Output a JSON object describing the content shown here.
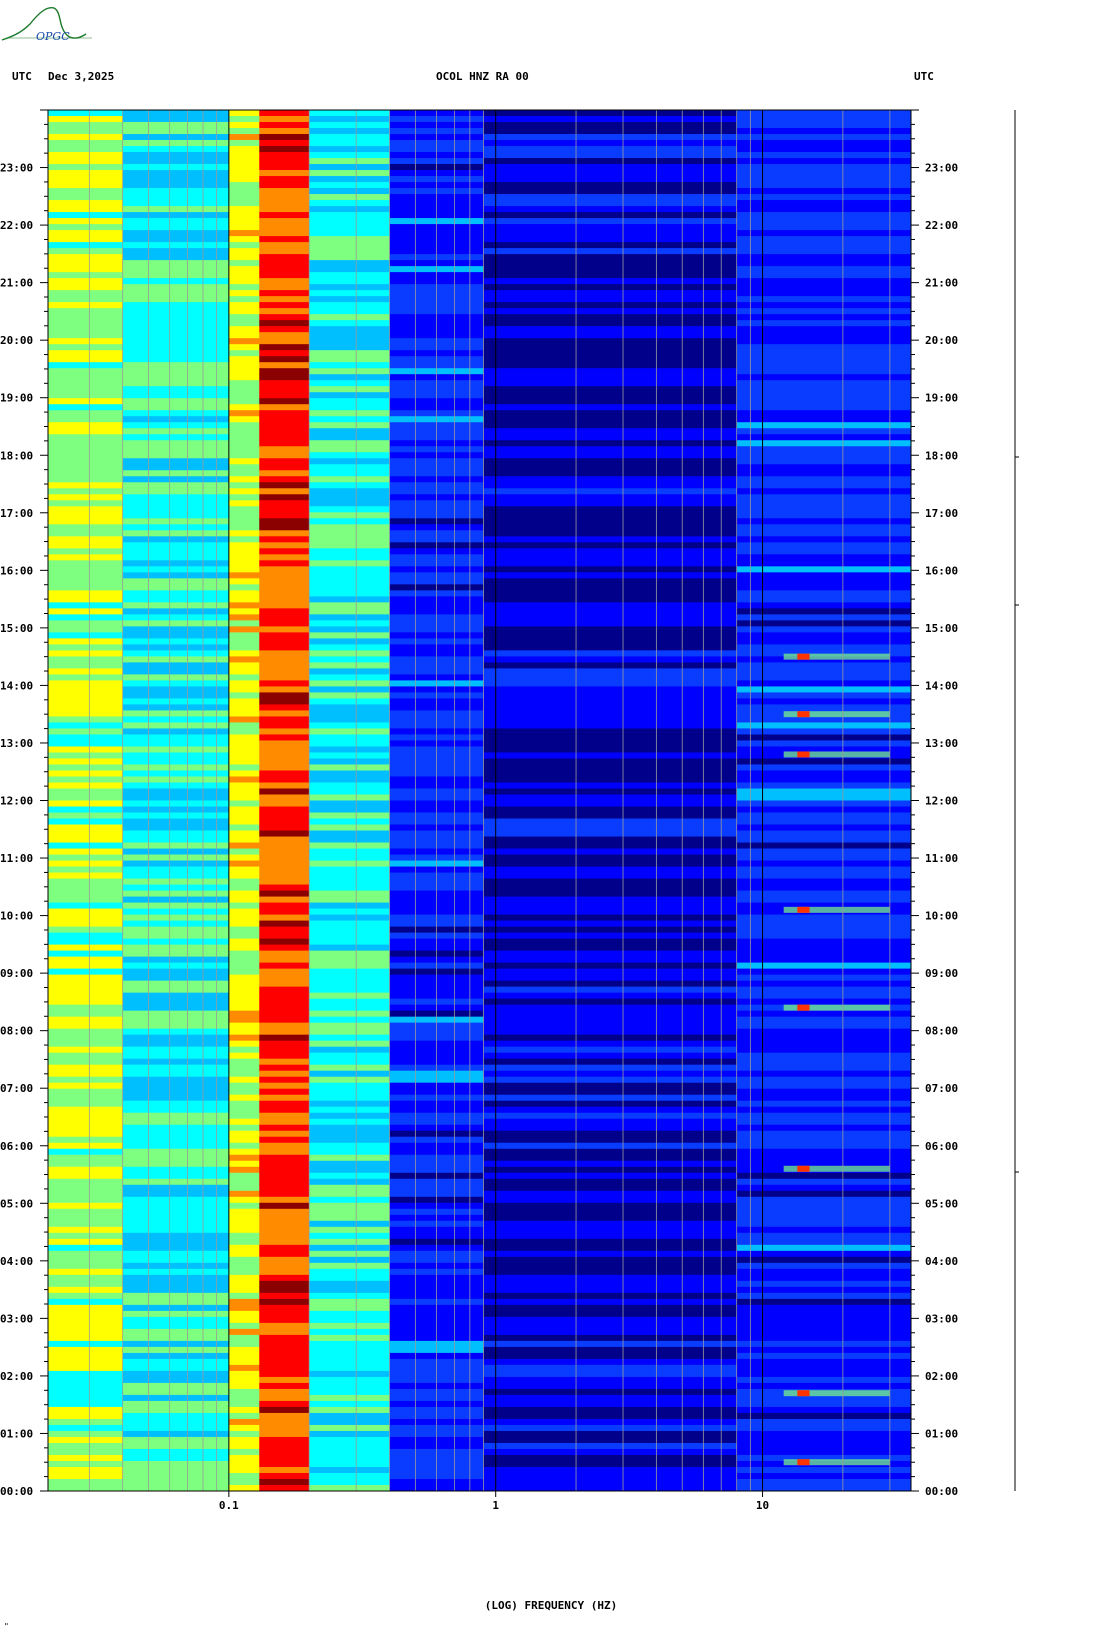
{
  "header": {
    "left_tz": "UTC",
    "date": "Dec 3,2025",
    "station": "OCOL HNZ RA 00",
    "right_tz": "UTC"
  },
  "logo": {
    "text": "OPGC"
  },
  "footer": {
    "mark": "\""
  },
  "chart_data": {
    "type": "heatmap",
    "xlabel": "(LOG) FREQUENCY (HZ)",
    "x_scale": "log",
    "xlim": [
      0.021,
      36
    ],
    "x_ticks": [
      {
        "value": 0.1,
        "label": "0.1"
      },
      {
        "value": 1,
        "label": "1"
      },
      {
        "value": 10,
        "label": "10"
      }
    ],
    "ylim": [
      0,
      24
    ],
    "y_ticks": [
      {
        "value": 0,
        "label": "00:00"
      },
      {
        "value": 1,
        "label": "01:00"
      },
      {
        "value": 2,
        "label": "02:00"
      },
      {
        "value": 3,
        "label": "03:00"
      },
      {
        "value": 4,
        "label": "04:00"
      },
      {
        "value": 5,
        "label": "05:00"
      },
      {
        "value": 6,
        "label": "06:00"
      },
      {
        "value": 7,
        "label": "07:00"
      },
      {
        "value": 8,
        "label": "08:00"
      },
      {
        "value": 9,
        "label": "09:00"
      },
      {
        "value": 10,
        "label": "10:00"
      },
      {
        "value": 11,
        "label": "11:00"
      },
      {
        "value": 12,
        "label": "12:00"
      },
      {
        "value": 13,
        "label": "13:00"
      },
      {
        "value": 14,
        "label": "14:00"
      },
      {
        "value": 15,
        "label": "15:00"
      },
      {
        "value": 16,
        "label": "16:00"
      },
      {
        "value": 17,
        "label": "17:00"
      },
      {
        "value": 18,
        "label": "18:00"
      },
      {
        "value": 19,
        "label": "19:00"
      },
      {
        "value": 20,
        "label": "20:00"
      },
      {
        "value": 21,
        "label": "21:00"
      },
      {
        "value": 22,
        "label": "22:00"
      },
      {
        "value": 23,
        "label": "23:00"
      }
    ],
    "colormap": [
      "#00008b",
      "#0000ff",
      "#0a3cff",
      "#00bfff",
      "#00ffff",
      "#7fff7f",
      "#ffff00",
      "#ff8c00",
      "#ff0000",
      "#8b0000"
    ],
    "spectral_bands": [
      {
        "f_low": 0.021,
        "f_high": 0.04,
        "level": 0.58
      },
      {
        "f_low": 0.04,
        "f_high": 0.1,
        "level": 0.45
      },
      {
        "f_low": 0.1,
        "f_high": 0.13,
        "level": 0.62
      },
      {
        "f_low": 0.13,
        "f_high": 0.2,
        "level": 0.82
      },
      {
        "f_low": 0.2,
        "f_high": 0.4,
        "level": 0.45
      },
      {
        "f_low": 0.4,
        "f_high": 0.9,
        "level": 0.2
      },
      {
        "f_low": 0.9,
        "f_high": 8,
        "level": 0.12
      },
      {
        "f_low": 8,
        "f_high": 36,
        "level": 0.2
      }
    ],
    "highlight_events_hours": [
      14.5,
      13.5,
      12.8,
      10.1,
      8.4,
      5.6,
      1.7,
      0.5
    ]
  }
}
